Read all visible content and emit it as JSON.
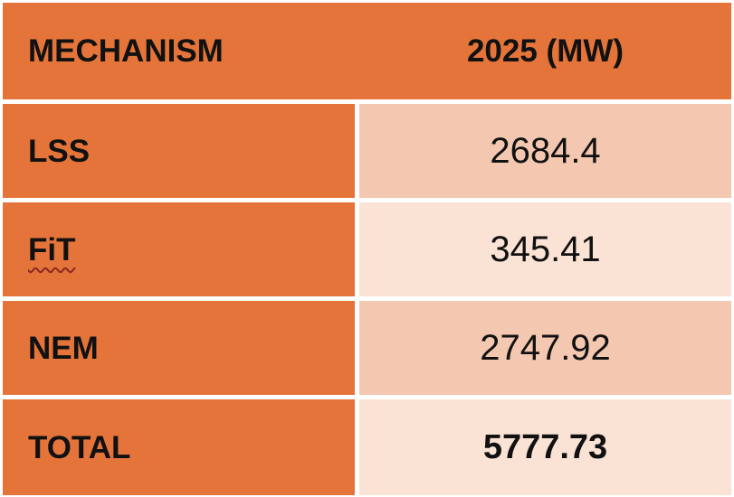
{
  "table": {
    "columns": [
      {
        "label": "MECHANISM"
      },
      {
        "label": "2025 (MW)"
      }
    ],
    "rows": [
      {
        "mechanism": "LSS",
        "value": "2684.4"
      },
      {
        "mechanism": "FiT",
        "value": "345.41",
        "spellcheck_underline": true
      },
      {
        "mechanism": "NEM",
        "value": "2747.92"
      },
      {
        "mechanism": "TOTAL",
        "value": "5777.73",
        "is_total": true
      }
    ],
    "colors": {
      "header_and_label_bg": "#E5743A",
      "value_bg_odd": "#F4C8B0",
      "value_bg_even": "#FAE3D5",
      "text": "#111111",
      "spellcheck_squiggle": "#8C2822",
      "gridline": "#FFFFFF"
    }
  },
  "chart_data": {
    "type": "table",
    "title": "",
    "columns": [
      "MECHANISM",
      "2025 (MW)"
    ],
    "rows": [
      [
        "LSS",
        2684.4
      ],
      [
        "FiT",
        345.41
      ],
      [
        "NEM",
        2747.92
      ],
      [
        "TOTAL",
        5777.73
      ]
    ],
    "notes": "TOTAL row value shown in bold; FiT label has red spell-check wavy underline"
  }
}
